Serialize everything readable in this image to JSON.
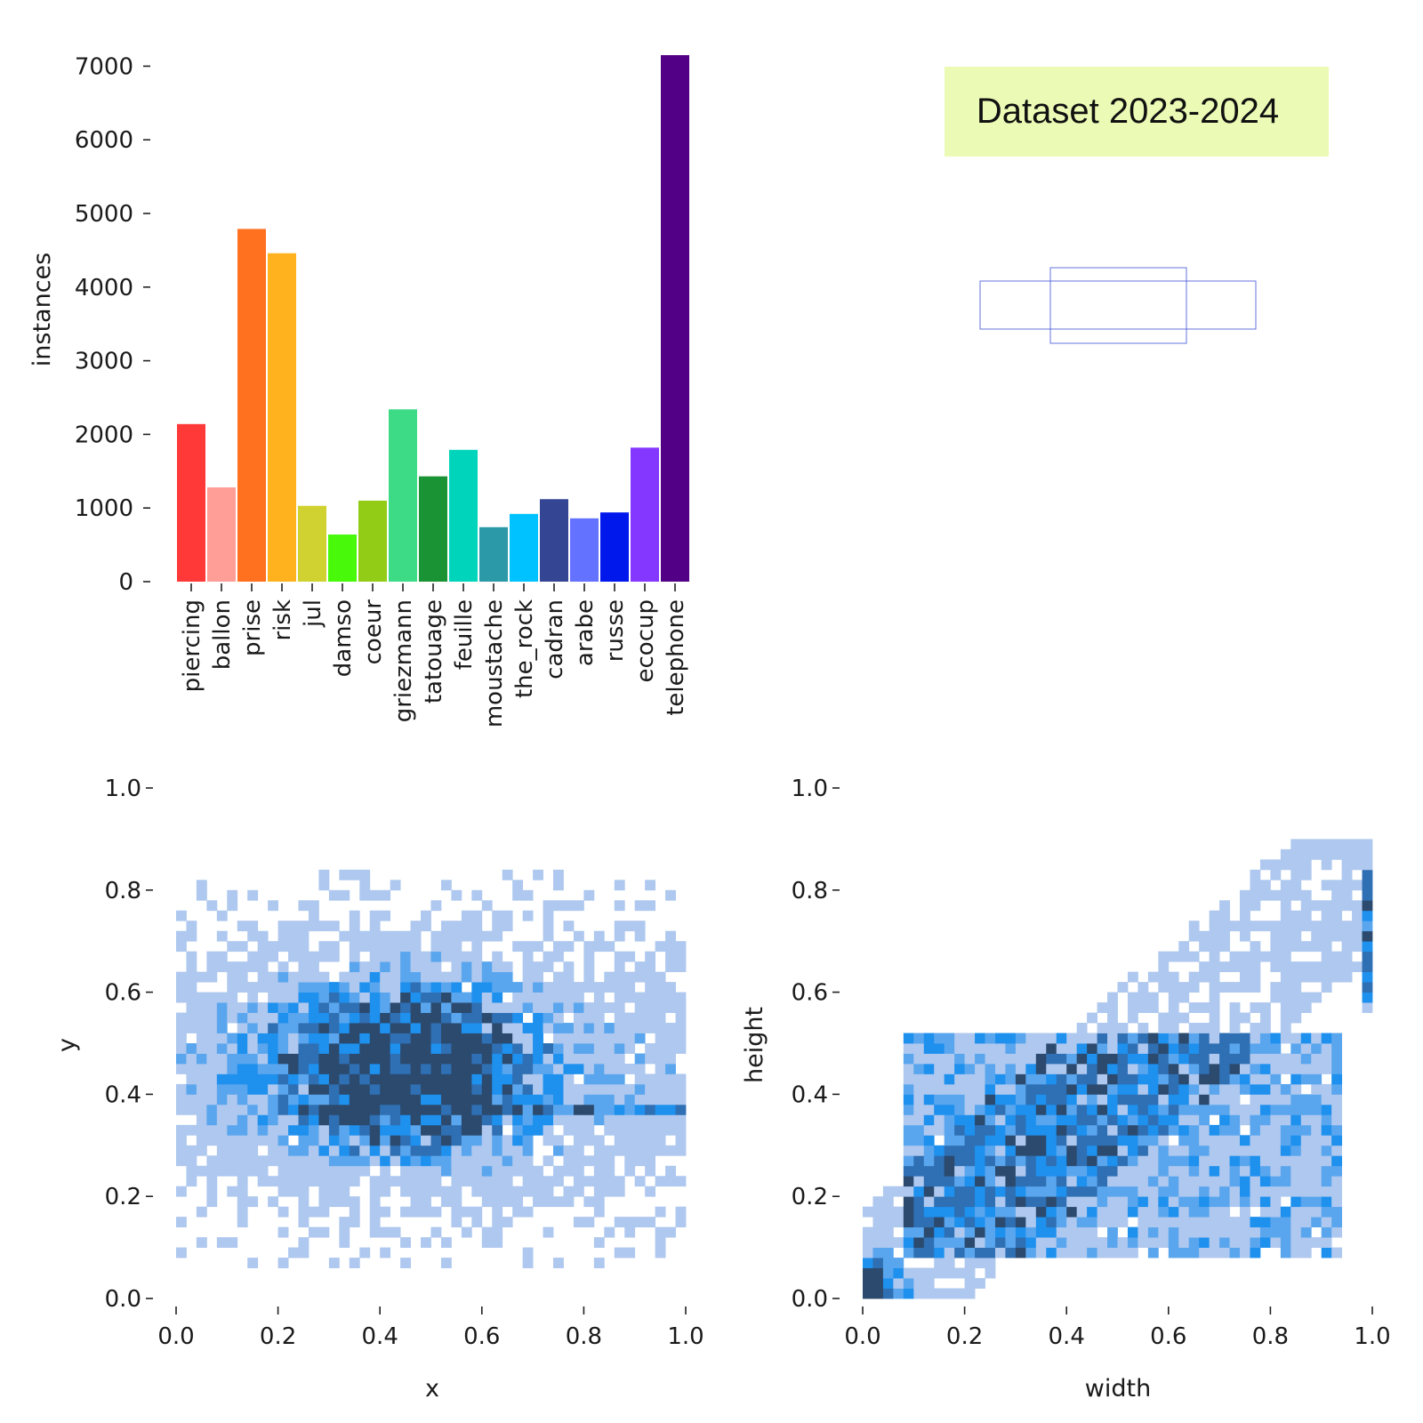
{
  "banner": {
    "text": "Dataset 2023-2024",
    "bg": "#ebfbb5"
  },
  "chart_data": [
    {
      "type": "bar",
      "ylabel": "instances",
      "ylim": [
        0,
        7150
      ],
      "yticks": [
        0,
        1000,
        2000,
        3000,
        4000,
        5000,
        6000,
        7000
      ],
      "categories": [
        "piercing",
        "ballon",
        "prise",
        "risk",
        "jul",
        "damso",
        "coeur",
        "griezmann",
        "tatouage",
        "feuille",
        "moustache",
        "the_rock",
        "cadran",
        "arabe",
        "russe",
        "ecocup",
        "telephone"
      ],
      "values": [
        2140,
        1280,
        4790,
        4460,
        1030,
        640,
        1100,
        2340,
        1430,
        1790,
        740,
        920,
        1120,
        860,
        940,
        1820,
        7150
      ],
      "colors": [
        "#ff3838",
        "#ff9d97",
        "#ff701f",
        "#ffb21d",
        "#cfd231",
        "#48f90a",
        "#92cc17",
        "#3ddb86",
        "#1a9334",
        "#00d4bb",
        "#2c99a8",
        "#00c2ff",
        "#344593",
        "#6473ff",
        "#0018ec",
        "#8438ff",
        "#520085"
      ]
    },
    {
      "type": "table",
      "note": "box-overlay",
      "stroke": "#4a5bd6"
    },
    {
      "type": "heatmap",
      "xlabel": "x",
      "ylabel": "y",
      "xlim": [
        0,
        1
      ],
      "ylim": [
        0,
        1
      ],
      "ticks": [
        "0.0",
        "0.2",
        "0.4",
        "0.6",
        "0.8",
        "1.0"
      ],
      "bins": 50,
      "colors": [
        "#aec8ef",
        "#5aa6ee",
        "#1e90ee",
        "#2f6fb3",
        "#2b4a6e"
      ]
    },
    {
      "type": "heatmap",
      "xlabel": "width",
      "ylabel": "height",
      "xlim": [
        0,
        1
      ],
      "ylim": [
        0,
        1
      ],
      "ticks": [
        "0.0",
        "0.2",
        "0.4",
        "0.6",
        "0.8",
        "1.0"
      ],
      "bins": 50,
      "colors": [
        "#aec8ef",
        "#5aa6ee",
        "#1e90ee",
        "#2f6fb3",
        "#2b4a6e"
      ]
    }
  ]
}
